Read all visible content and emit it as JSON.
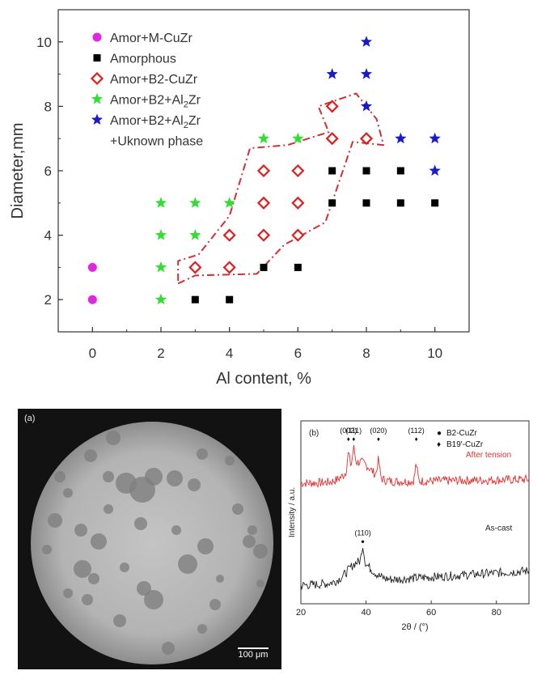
{
  "chart_data": [
    {
      "type": "scatter",
      "xlabel": "Al content, %",
      "ylabel": "Diameter,mm",
      "xlim": [
        -1,
        11
      ],
      "ylim": [
        1,
        11
      ],
      "xticks": [
        "0",
        "2",
        "4",
        "6",
        "8",
        "10"
      ],
      "yticks": [
        "2",
        "4",
        "6",
        "8",
        "10"
      ],
      "legend_position": "top-left",
      "series": [
        {
          "name": "Amor+M-CuZr",
          "name_sub": "",
          "color": "#e026e0",
          "marker": "circle",
          "points": [
            [
              0,
              2
            ],
            [
              0,
              3
            ]
          ]
        },
        {
          "name": "Amorphous",
          "name_sub": "",
          "color": "#000000",
          "marker": "square",
          "points": [
            [
              3,
              2
            ],
            [
              4,
              2
            ],
            [
              5,
              3
            ],
            [
              6,
              3
            ],
            [
              7,
              5
            ],
            [
              7,
              6
            ],
            [
              8,
              5
            ],
            [
              8,
              6
            ],
            [
              9,
              5
            ],
            [
              9,
              6
            ],
            [
              10,
              5
            ]
          ]
        },
        {
          "name": "Amor+B2-CuZr",
          "name_sub": "",
          "color": "#e01c1c",
          "marker": "diamond",
          "points": [
            [
              3,
              3
            ],
            [
              4,
              3
            ],
            [
              4,
              4
            ],
            [
              5,
              4
            ],
            [
              6,
              4
            ],
            [
              5,
              5
            ],
            [
              6,
              5
            ],
            [
              5,
              6
            ],
            [
              6,
              6
            ],
            [
              7,
              7
            ],
            [
              8,
              7
            ],
            [
              7,
              8
            ]
          ]
        },
        {
          "name": "Amor+B2+Al",
          "name_sub": "2",
          "name_tail": "Zr",
          "color": "#33dd33",
          "marker": "star",
          "points": [
            [
              2,
              2
            ],
            [
              2,
              3
            ],
            [
              2,
              4
            ],
            [
              3,
              4
            ],
            [
              2,
              5
            ],
            [
              3,
              5
            ],
            [
              4,
              5
            ],
            [
              5,
              7
            ],
            [
              6,
              7
            ]
          ]
        },
        {
          "name": "Amor+B2+Al",
          "name_sub": "2",
          "name_tail": "Zr",
          "color": "#1a1acc",
          "marker": "star",
          "points": [
            [
              7,
              9
            ],
            [
              8,
              8
            ],
            [
              8,
              9
            ],
            [
              8,
              10
            ],
            [
              9,
              7
            ],
            [
              10,
              6
            ],
            [
              10,
              7
            ]
          ]
        }
      ],
      "legend_extra": "+Uknown phase"
    },
    {
      "type": "line",
      "panel_label": "(b)",
      "xlabel": "2θ / (°)",
      "ylabel": "Intensity / a.u.",
      "xlim": [
        20,
        90
      ],
      "xticks": [
        "20",
        "40",
        "60",
        "80"
      ],
      "legend": [
        {
          "symbol": "●",
          "label": "B2-CuZr"
        },
        {
          "symbol": "♦",
          "label": "B19'-CuZr"
        }
      ],
      "series": [
        {
          "name": "After tension",
          "color": "#e03030",
          "baseline": 0.66,
          "amplitude": 0.2
        },
        {
          "name": "As-cast",
          "color": "#222222",
          "baseline": 0.1,
          "amplitude": 0.2
        }
      ],
      "peaks": [
        {
          "label": "(111)",
          "two_theta": 36.2,
          "series": "After tension",
          "marker": "♦"
        },
        {
          "label": "(002)",
          "two_theta": 34.6,
          "series": "After tension",
          "marker": "♦"
        },
        {
          "label": "(020)",
          "two_theta": 43.8,
          "series": "After tension",
          "marker": "♦"
        },
        {
          "label": "(112)",
          "two_theta": 55.4,
          "series": "After tension",
          "marker": "♦"
        },
        {
          "label": "(110)",
          "two_theta": 39.0,
          "series": "As-cast",
          "marker": "●"
        }
      ]
    }
  ],
  "micrograph": {
    "panel_label": "(a)",
    "scale_bar": "100 μm"
  }
}
